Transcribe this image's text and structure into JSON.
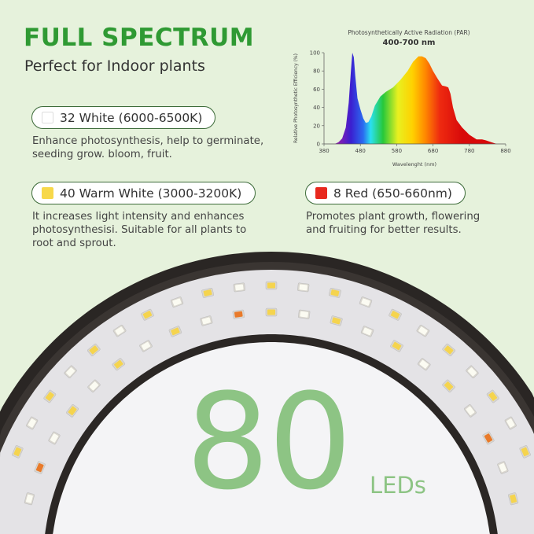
{
  "title": "FULL SPECTRUM",
  "subtitle": "Perfect for Indoor plants",
  "features": [
    {
      "label": "32 White (6000-6500K)",
      "color": "#ffffff",
      "description": "Enhance photosynthesis, help to germinate, seeding grow. bloom, fruit."
    },
    {
      "label": "40 Warm White (3000-3200K)",
      "color": "#f7d84a",
      "description": "It increases light intensity and enhances photosynthesisi. Suitable for all plants to root and sprout."
    },
    {
      "label": "8 Red (650-660nm)",
      "color": "#e8281e",
      "description": "Promotes plant growth, flowering and fruiting for better results."
    }
  ],
  "count": "80",
  "count_unit": "LEDs",
  "chart_data": {
    "type": "area",
    "title": "Photosynthetically Active Radiation (PAR)",
    "subtitle": "400-700 nm",
    "xlabel": "Wavelenght (nm)",
    "ylabel": "Relative Photosynthetic Efficiency (%)",
    "xlim": [
      380,
      880
    ],
    "ylim": [
      0,
      100
    ],
    "xticks": [
      380,
      480,
      580,
      680,
      780,
      880
    ],
    "yticks": [
      0,
      20,
      40,
      60,
      80,
      100
    ],
    "fill": "rainbow gradient by wavelength",
    "x": [
      410,
      420,
      430,
      440,
      448,
      454,
      458,
      462,
      466,
      472,
      480,
      488,
      495,
      502,
      510,
      520,
      535,
      550,
      570,
      590,
      610,
      625,
      640,
      650,
      660,
      670,
      680,
      692,
      705,
      715,
      722,
      728,
      735,
      745,
      760,
      780,
      800,
      815,
      825,
      840,
      855
    ],
    "y": [
      0,
      2,
      6,
      18,
      45,
      80,
      100,
      95,
      75,
      50,
      38,
      28,
      23,
      24,
      30,
      42,
      52,
      57,
      62,
      70,
      80,
      90,
      96,
      96,
      94,
      88,
      80,
      72,
      64,
      63,
      62,
      55,
      40,
      26,
      18,
      10,
      5,
      5,
      4,
      2,
      0
    ]
  }
}
